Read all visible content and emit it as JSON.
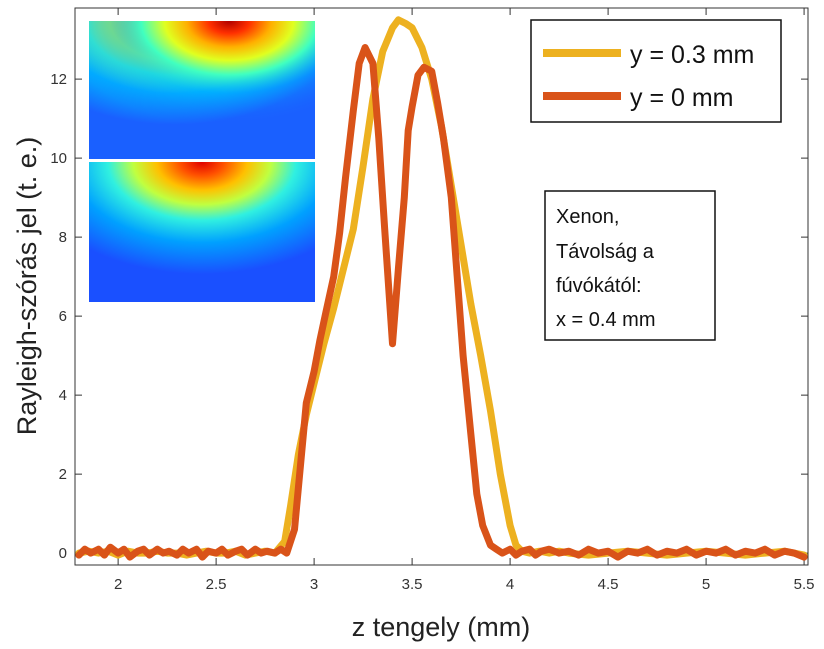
{
  "chart_data": {
    "type": "line",
    "title": "",
    "xlabel": "z tengely (mm)",
    "ylabel": "Rayleigh-szórás jel (t. e.)",
    "xlim": [
      1.78,
      5.52
    ],
    "ylim": [
      -0.3,
      13.8
    ],
    "xticks": [
      "2",
      "2.5",
      "3",
      "3.5",
      "4",
      "4.5",
      "5",
      "5.5"
    ],
    "yticks": [
      "0",
      "2",
      "4",
      "6",
      "8",
      "10",
      "12"
    ],
    "grid": false,
    "legend_position": "top-right",
    "series": [
      {
        "name": "y = 0.3 mm",
        "color": "#EDB120",
        "x": [
          1.8,
          1.85,
          1.9,
          1.95,
          2.0,
          2.05,
          2.1,
          2.15,
          2.2,
          2.25,
          2.3,
          2.35,
          2.4,
          2.45,
          2.5,
          2.55,
          2.6,
          2.65,
          2.7,
          2.75,
          2.8,
          2.85,
          2.88,
          2.92,
          2.96,
          3.0,
          3.05,
          3.1,
          3.15,
          3.2,
          3.25,
          3.3,
          3.35,
          3.4,
          3.43,
          3.47,
          3.5,
          3.55,
          3.6,
          3.65,
          3.7,
          3.75,
          3.8,
          3.85,
          3.9,
          3.95,
          4.0,
          4.03,
          4.06,
          4.1,
          4.15,
          4.2,
          4.25,
          4.3,
          4.4,
          4.5,
          4.6,
          4.7,
          4.8,
          4.9,
          5.0,
          5.1,
          5.2,
          5.3,
          5.4,
          5.5
        ],
        "y": [
          0.0,
          0.05,
          0.0,
          0.05,
          -0.05,
          0.05,
          0.0,
          0.0,
          0.05,
          0.0,
          0.0,
          -0.05,
          0.0,
          0.05,
          0.0,
          0.0,
          0.05,
          -0.05,
          0.0,
          0.05,
          0.0,
          0.3,
          1.2,
          2.5,
          3.5,
          4.3,
          5.3,
          6.2,
          7.2,
          8.2,
          9.8,
          11.5,
          12.7,
          13.3,
          13.5,
          13.4,
          13.3,
          12.8,
          12.0,
          10.8,
          9.3,
          7.8,
          6.3,
          5.0,
          3.6,
          2.0,
          0.7,
          0.2,
          0.05,
          0.0,
          0.05,
          0.0,
          0.05,
          0.0,
          -0.05,
          0.0,
          0.05,
          0.0,
          -0.05,
          0.0,
          0.05,
          0.0,
          -0.05,
          0.0,
          0.05,
          -0.05
        ]
      },
      {
        "name": "y = 0 mm",
        "color": "#D95319",
        "x": [
          1.8,
          1.83,
          1.86,
          1.9,
          1.93,
          1.96,
          2.0,
          2.03,
          2.06,
          2.1,
          2.13,
          2.16,
          2.2,
          2.23,
          2.26,
          2.3,
          2.33,
          2.36,
          2.4,
          2.43,
          2.46,
          2.5,
          2.53,
          2.56,
          2.6,
          2.63,
          2.66,
          2.7,
          2.73,
          2.76,
          2.8,
          2.83,
          2.86,
          2.9,
          2.93,
          2.96,
          3.0,
          3.03,
          3.06,
          3.1,
          3.13,
          3.16,
          3.2,
          3.23,
          3.26,
          3.3,
          3.33,
          3.36,
          3.4,
          3.43,
          3.46,
          3.48,
          3.5,
          3.53,
          3.56,
          3.6,
          3.63,
          3.66,
          3.7,
          3.73,
          3.76,
          3.8,
          3.83,
          3.86,
          3.9,
          3.93,
          3.96,
          4.0,
          4.03,
          4.06,
          4.1,
          4.13,
          4.16,
          4.2,
          4.25,
          4.3,
          4.35,
          4.4,
          4.45,
          4.5,
          4.55,
          4.6,
          4.65,
          4.7,
          4.75,
          4.8,
          4.85,
          4.9,
          4.95,
          5.0,
          5.05,
          5.1,
          5.15,
          5.2,
          5.25,
          5.3,
          5.35,
          5.4,
          5.45,
          5.5
        ],
        "y": [
          -0.05,
          0.1,
          0.0,
          0.1,
          -0.05,
          0.15,
          0.0,
          0.1,
          -0.1,
          0.05,
          0.1,
          -0.05,
          0.1,
          0.0,
          0.05,
          -0.05,
          0.1,
          0.0,
          0.1,
          -0.1,
          0.05,
          0.0,
          0.1,
          -0.05,
          0.05,
          0.1,
          -0.05,
          0.1,
          0.0,
          0.05,
          0.0,
          0.1,
          0.0,
          0.6,
          2.2,
          3.8,
          4.6,
          5.4,
          6.1,
          7.0,
          8.1,
          9.5,
          11.2,
          12.4,
          12.8,
          12.4,
          10.5,
          8.2,
          5.3,
          7.2,
          9.0,
          10.7,
          11.3,
          12.1,
          12.3,
          12.2,
          11.4,
          10.5,
          9.0,
          7.0,
          5.0,
          3.0,
          1.5,
          0.7,
          0.2,
          0.1,
          0.0,
          0.1,
          -0.05,
          0.05,
          0.1,
          -0.05,
          0.05,
          0.1,
          0.0,
          0.05,
          -0.05,
          0.1,
          0.0,
          0.05,
          -0.1,
          0.05,
          0.0,
          0.1,
          -0.05,
          0.05,
          0.0,
          0.1,
          -0.05,
          0.05,
          0.0,
          0.1,
          -0.05,
          0.05,
          0.0,
          0.1,
          -0.05,
          0.05,
          0.0,
          -0.1
        ]
      }
    ],
    "legend": {
      "entries": [
        "y = 0.3 mm",
        "y = 0 mm"
      ]
    },
    "annotation": {
      "lines": [
        "Xenon,",
        "Távolság a",
        "fúvókától:",
        "x = 0.4 mm"
      ]
    },
    "inset": {
      "description_colormap": "jet",
      "panels": 2
    }
  }
}
